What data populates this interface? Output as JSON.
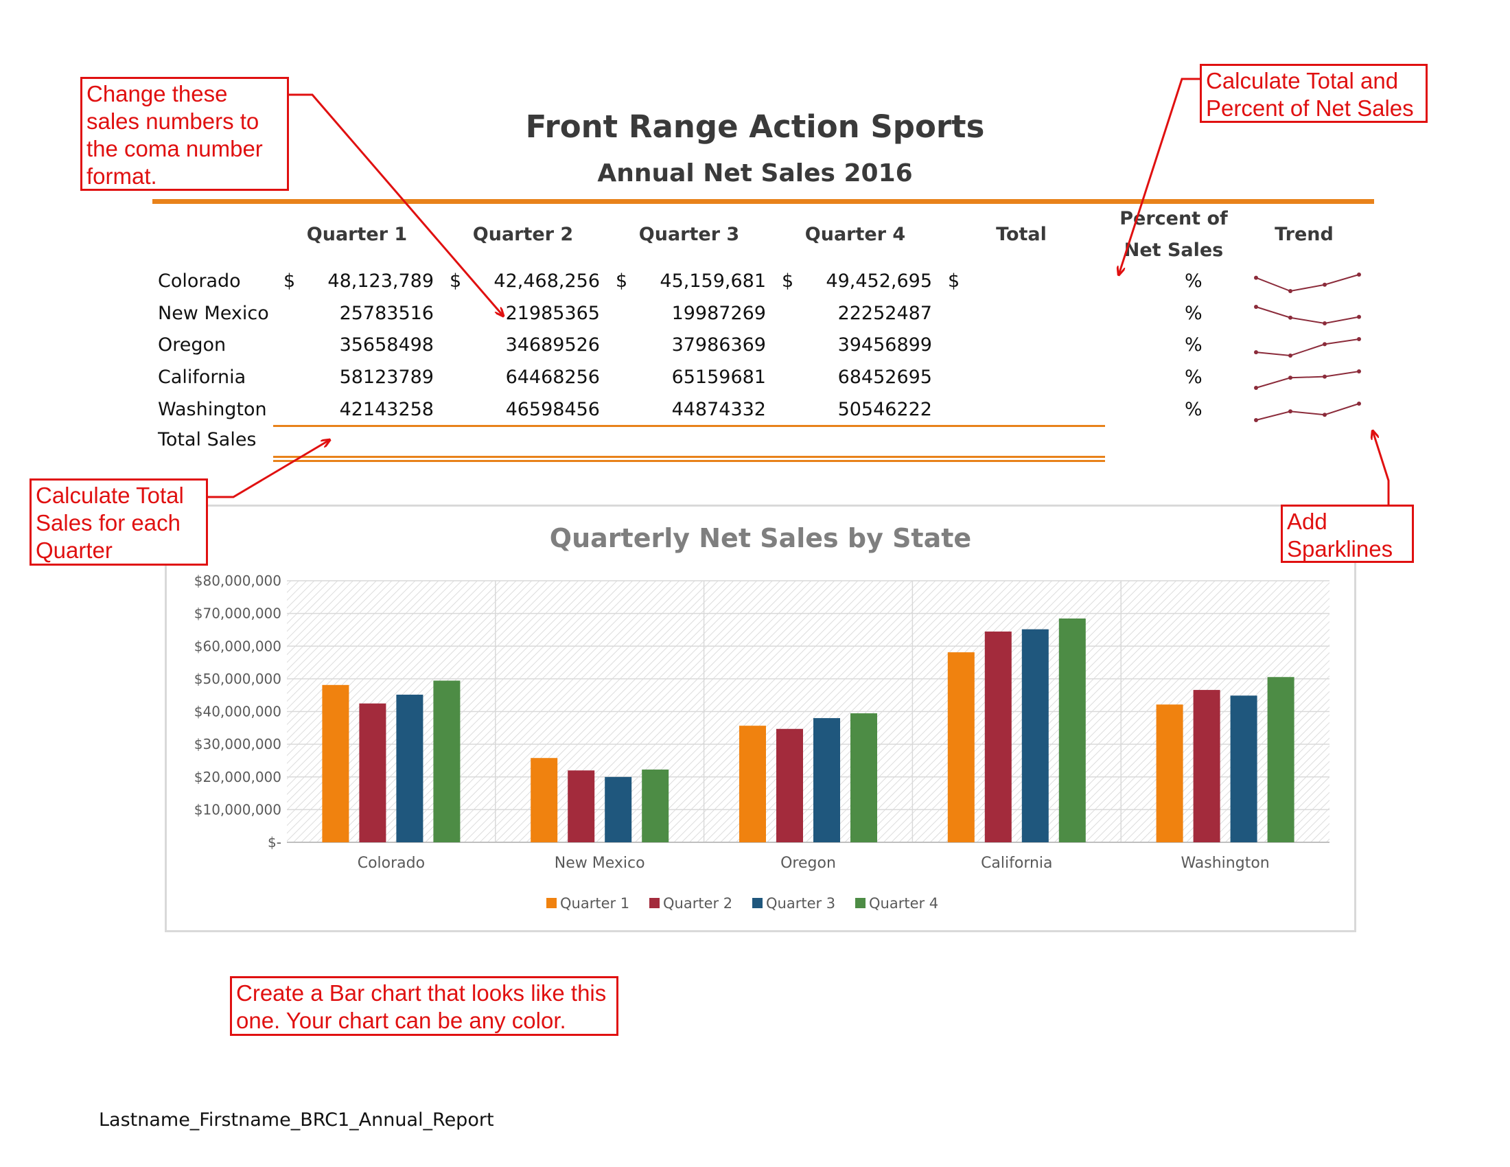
{
  "report": {
    "title": "Front Range Action Sports",
    "subtitle": "Annual Net Sales 2016",
    "headers": {
      "q1": "Quarter 1",
      "q2": "Quarter 2",
      "q3": "Quarter 3",
      "q4": "Quarter 4",
      "total": "Total",
      "percent_line1": "Percent of",
      "percent_line2": "Net Sales",
      "trend": "Trend"
    },
    "rows": [
      {
        "state": "Colorado",
        "q1": "48,123,789",
        "q2": "42,468,256",
        "q3": "45,159,681",
        "q4": "49,452,695",
        "pct": "%"
      },
      {
        "state": "New Mexico",
        "q1": "25783516",
        "q2": "21985365",
        "q3": "19987269",
        "q4": "22252487",
        "pct": "%"
      },
      {
        "state": "Oregon",
        "q1": "35658498",
        "q2": "34689526",
        "q3": "37986369",
        "q4": "39456899",
        "pct": "%"
      },
      {
        "state": "California",
        "q1": "58123789",
        "q2": "64468256",
        "q3": "65159681",
        "q4": "68452695",
        "pct": "%"
      },
      {
        "state": "Washington",
        "q1": "42143258",
        "q2": "46598456",
        "q3": "44874332",
        "q4": "50546222",
        "pct": "%"
      }
    ],
    "currency_symbol": "$",
    "total_row_label": "Total Sales"
  },
  "callouts": {
    "comma_format": "Change these sales numbers to the coma number format.",
    "total_percent": "Calculate Total and Percent of Net Sales",
    "total_quarter": "Calculate Total Sales for each Quarter",
    "sparklines": "Add Sparklines",
    "bar_chart": "Create a Bar chart that looks like this one.  Your chart can be any color."
  },
  "footer": "Lastname_Firstname_BRC1_Annual_Report",
  "chart_data": {
    "type": "bar",
    "title": "Quarterly Net Sales by State",
    "categories": [
      "Colorado",
      "New Mexico",
      "Oregon",
      "California",
      "Washington"
    ],
    "series": [
      {
        "name": "Quarter 1",
        "color": "#f0820f",
        "values": [
          48123789,
          25783516,
          35658498,
          58123789,
          42143258
        ]
      },
      {
        "name": "Quarter 2",
        "color": "#a32b3c",
        "values": [
          42468256,
          21985365,
          34689526,
          64468256,
          46598456
        ]
      },
      {
        "name": "Quarter 3",
        "color": "#1f577d",
        "values": [
          45159681,
          19987269,
          37986369,
          65159681,
          44874332
        ]
      },
      {
        "name": "Quarter 4",
        "color": "#4d8c45",
        "values": [
          49452695,
          22252487,
          39456899,
          68452695,
          50546222
        ]
      }
    ],
    "yticks": [
      "$-",
      "$10,000,000",
      "$20,000,000",
      "$30,000,000",
      "$40,000,000",
      "$50,000,000",
      "$60,000,000",
      "$70,000,000",
      "$80,000,000"
    ],
    "ylim": [
      0,
      80000000
    ],
    "grid": true,
    "legend": "bottom"
  },
  "sparklines": [
    [
      48123789,
      42468256,
      45159681,
      49452695
    ],
    [
      25783516,
      21985365,
      19987269,
      22252487
    ],
    [
      35658498,
      34689526,
      37986369,
      39456899
    ],
    [
      58123789,
      64468256,
      65159681,
      68452695
    ],
    [
      42143258,
      46598456,
      44874332,
      50546222
    ]
  ],
  "colors": {
    "accent_orange": "#e8821a",
    "callout_red": "#e01010",
    "sparkline": "#8b2b3a"
  }
}
